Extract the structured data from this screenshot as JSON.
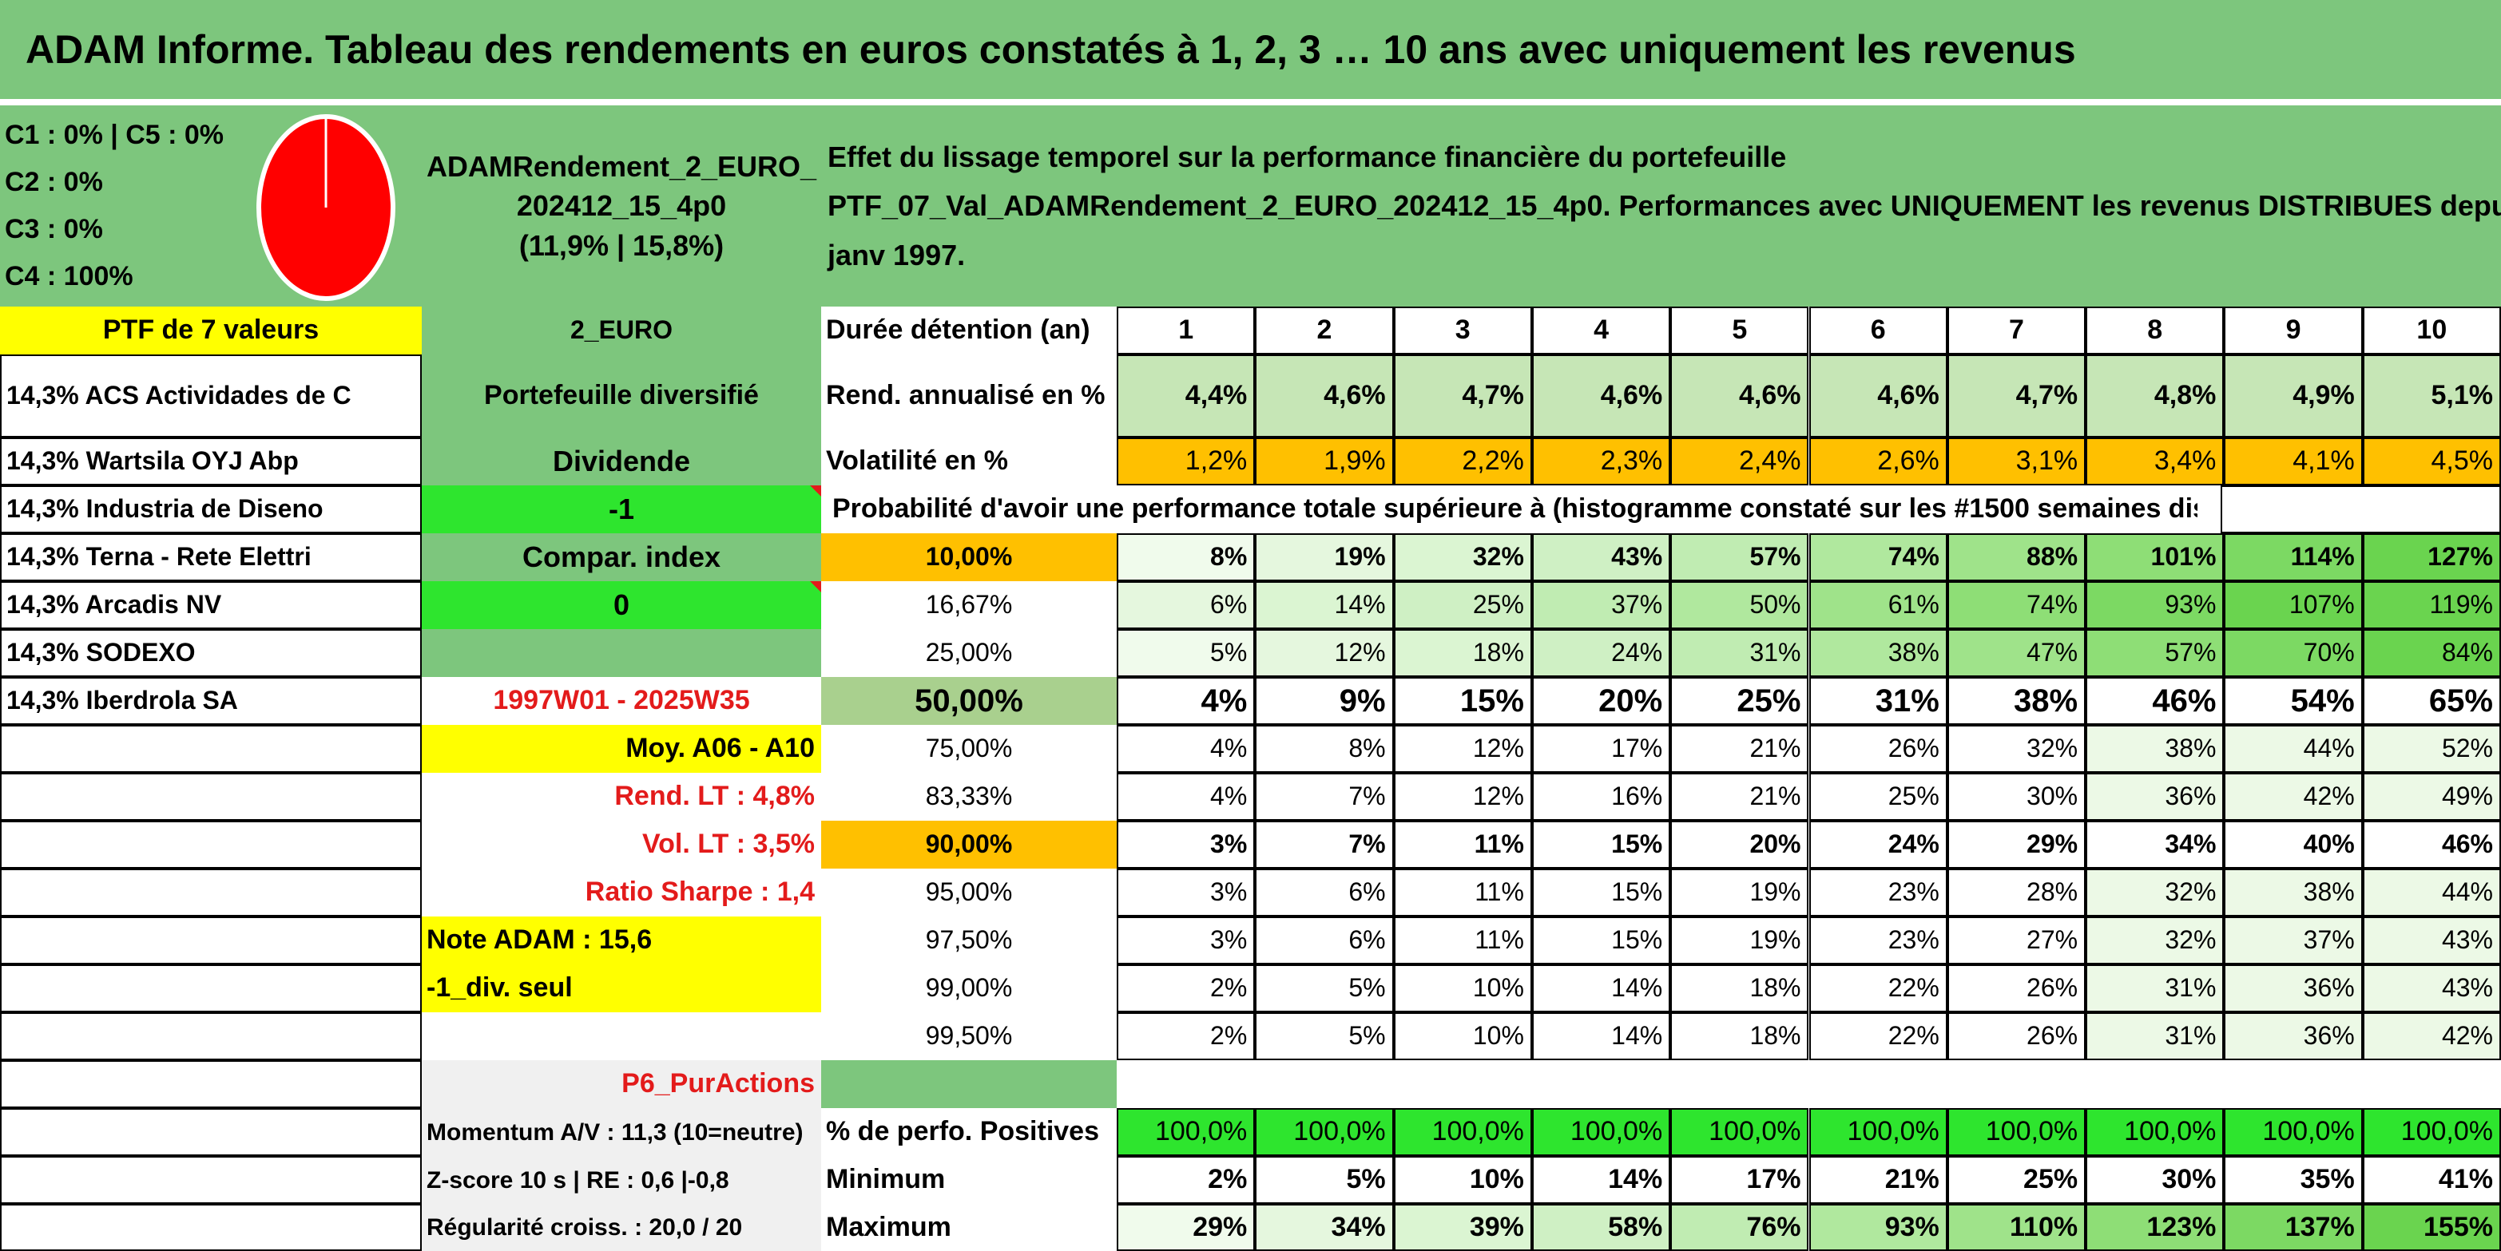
{
  "title": "ADAM Informe. Tableau des rendements en euros constatés à 1, 2, 3 … 10 ans avec uniquement les revenus",
  "colors": {
    "header_green": "#7dc67d",
    "bright_green": "#2ee52e",
    "yellow": "#ffff00",
    "orange": "#ffc000",
    "light_green": "#c6e6b6",
    "red_text": "#e31b1b",
    "pie_red": "#ff0000"
  },
  "allocation": {
    "lines": [
      "C1 : 0% | C5 : 0%",
      "C2 : 0%",
      "C3 : 0%",
      "C4 : 100%"
    ],
    "pie_share_c4": 1.0
  },
  "portfolio": {
    "name_lines": [
      "ADAMRendement_2_EURO_",
      "202412_15_4p0",
      "(11,9% | 15,8%)"
    ],
    "description_lines": [
      "Effet du lissage temporel sur la performance financière du portefeuille",
      "PTF_07_Val_ADAMRendement_2_EURO_202412_15_4p0. Performances avec UNIQUEMENT les revenus DISTRIBUES depuis",
      "janv 1997."
    ],
    "ptf_label": "PTF de 7 valeurs",
    "currency": "2_EURO"
  },
  "holdings": [
    "14,3% ACS Actividades de C",
    "14,3% Wartsila OYJ Abp",
    "14,3% Industria de Diseno",
    "14,3% Terna - Rete Elettri",
    "14,3% Arcadis NV",
    "14,3% SODEXO",
    "14,3% Iberdrola SA"
  ],
  "side": {
    "type": "Portefeuille diversifié",
    "dividend_label": "Dividende",
    "dividend_value": "-1",
    "compar_label": "Compar. index",
    "compar_value": "0",
    "period": "1997W01 - 2025W35",
    "moy": "Moy. A06 - A10",
    "rend_lt": "Rend. LT : 4,8%",
    "vol_lt": "Vol. LT : 3,5%",
    "sharpe": "Ratio Sharpe : 1,4",
    "note": "Note ADAM : 15,6",
    "div_seul": "-1_div. seul",
    "pur_actions": "P6_PurActions",
    "momentum": "Momentum A/V : 11,3 (10=neutre)",
    "zscore": "Z-score 10 s | RE : 0,6 |-0,8",
    "regularite": "Régularité croiss. : 20,0 / 20"
  },
  "table": {
    "duration_label": "Durée détention (an)",
    "years": [
      "1",
      "2",
      "3",
      "4",
      "5",
      "6",
      "7",
      "8",
      "9",
      "10"
    ],
    "rend_label": "Rend. annualisé en %",
    "rend": [
      "4,4%",
      "4,6%",
      "4,7%",
      "4,6%",
      "4,6%",
      "4,6%",
      "4,7%",
      "4,8%",
      "4,9%",
      "5,1%"
    ],
    "vol_label": "Volatilité en %",
    "vol": [
      "1,2%",
      "1,9%",
      "2,2%",
      "2,3%",
      "2,4%",
      "2,6%",
      "3,1%",
      "3,4%",
      "4,1%",
      "4,5%"
    ],
    "proba_header": "Probabilité d'avoir une performance totale supérieure à (histogramme constaté sur les #1500 semaines disponibles)",
    "percentile_rows": [
      {
        "p": "10,00%",
        "v": [
          "8%",
          "19%",
          "32%",
          "43%",
          "57%",
          "74%",
          "88%",
          "101%",
          "114%",
          "127%"
        ]
      },
      {
        "p": "16,67%",
        "v": [
          "6%",
          "14%",
          "25%",
          "37%",
          "50%",
          "61%",
          "74%",
          "93%",
          "107%",
          "119%"
        ]
      },
      {
        "p": "25,00%",
        "v": [
          "5%",
          "12%",
          "18%",
          "24%",
          "31%",
          "38%",
          "47%",
          "57%",
          "70%",
          "84%"
        ]
      },
      {
        "p": "50,00%",
        "v": [
          "4%",
          "9%",
          "15%",
          "20%",
          "25%",
          "31%",
          "38%",
          "46%",
          "54%",
          "65%"
        ]
      },
      {
        "p": "75,00%",
        "v": [
          "4%",
          "8%",
          "12%",
          "17%",
          "21%",
          "26%",
          "32%",
          "38%",
          "44%",
          "52%"
        ]
      },
      {
        "p": "83,33%",
        "v": [
          "4%",
          "7%",
          "12%",
          "16%",
          "21%",
          "25%",
          "30%",
          "36%",
          "42%",
          "49%"
        ]
      },
      {
        "p": "90,00%",
        "v": [
          "3%",
          "7%",
          "11%",
          "15%",
          "20%",
          "24%",
          "29%",
          "34%",
          "40%",
          "46%"
        ]
      },
      {
        "p": "95,00%",
        "v": [
          "3%",
          "6%",
          "11%",
          "15%",
          "19%",
          "23%",
          "28%",
          "32%",
          "38%",
          "44%"
        ]
      },
      {
        "p": "97,50%",
        "v": [
          "3%",
          "6%",
          "11%",
          "15%",
          "19%",
          "23%",
          "27%",
          "32%",
          "37%",
          "43%"
        ]
      },
      {
        "p": "99,00%",
        "v": [
          "2%",
          "5%",
          "10%",
          "14%",
          "18%",
          "22%",
          "26%",
          "31%",
          "36%",
          "43%"
        ]
      },
      {
        "p": "99,50%",
        "v": [
          "2%",
          "5%",
          "10%",
          "14%",
          "18%",
          "22%",
          "26%",
          "31%",
          "36%",
          "42%"
        ]
      }
    ],
    "pos_label": "% de perfo. Positives",
    "pos": [
      "100,0%",
      "100,0%",
      "100,0%",
      "100,0%",
      "100,0%",
      "100,0%",
      "100,0%",
      "100,0%",
      "100,0%",
      "100,0%"
    ],
    "min_label": "Minimum",
    "min": [
      "2%",
      "5%",
      "10%",
      "14%",
      "17%",
      "21%",
      "25%",
      "30%",
      "35%",
      "41%"
    ],
    "max_label": "Maximum",
    "max": [
      "29%",
      "34%",
      "39%",
      "58%",
      "76%",
      "93%",
      "110%",
      "123%",
      "137%",
      "155%"
    ]
  }
}
